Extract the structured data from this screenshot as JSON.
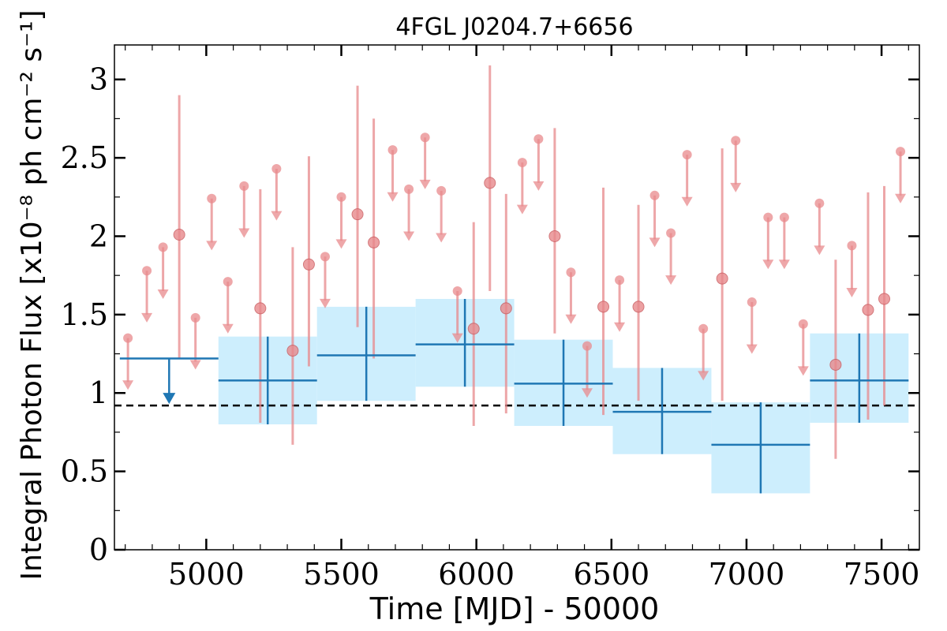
{
  "chart_data": {
    "type": "scatter",
    "title": "4FGL J0204.7+6656",
    "xlabel": "Time [MJD] - 50000",
    "ylabel": "Integral Photon Flux [x10⁻⁸ ph cm⁻² s⁻¹]",
    "xlim": [
      4660,
      7640
    ],
    "ylim": [
      0,
      3.22
    ],
    "xticks": [
      5000,
      5500,
      6000,
      6500,
      7000,
      7500
    ],
    "yticks": [
      0,
      0.5,
      1,
      1.5,
      2,
      2.5,
      3
    ],
    "ytick_labels": [
      "0",
      "0.5",
      "1",
      "1.5",
      "2",
      "2.5",
      "3"
    ],
    "mean_flux_line": 0.92,
    "colors": {
      "binned": "#1f77b4",
      "band": "#cdeefd",
      "monthly": "#e8898c",
      "mean": "#000000"
    },
    "series": [
      {
        "kind": "monthly_points",
        "points": [
          {
            "x": 4900,
            "y": 2.01,
            "lo": 1.22,
            "hi": 2.9
          },
          {
            "x": 5200,
            "y": 1.54,
            "lo": 0.81,
            "hi": 2.3
          },
          {
            "x": 5320,
            "y": 1.27,
            "lo": 0.67,
            "hi": 1.93
          },
          {
            "x": 5380,
            "y": 1.82,
            "lo": 1.17,
            "hi": 2.51
          },
          {
            "x": 5560,
            "y": 2.14,
            "lo": 1.42,
            "hi": 2.96
          },
          {
            "x": 5620,
            "y": 1.96,
            "lo": 1.22,
            "hi": 2.75
          },
          {
            "x": 5990,
            "y": 1.41,
            "lo": 0.79,
            "hi": 2.09
          },
          {
            "x": 6050,
            "y": 2.34,
            "lo": 1.65,
            "hi": 3.09
          },
          {
            "x": 6110,
            "y": 1.54,
            "lo": 0.87,
            "hi": 2.27
          },
          {
            "x": 6290,
            "y": 2.0,
            "lo": 1.38,
            "hi": 2.69
          },
          {
            "x": 6470,
            "y": 1.55,
            "lo": 0.86,
            "hi": 2.31
          },
          {
            "x": 6600,
            "y": 1.55,
            "lo": 0.95,
            "hi": 2.2
          },
          {
            "x": 6910,
            "y": 1.73,
            "lo": 0.95,
            "hi": 2.56
          },
          {
            "x": 7330,
            "y": 1.18,
            "lo": 0.58,
            "hi": 1.85
          },
          {
            "x": 7450,
            "y": 1.53,
            "lo": 0.83,
            "hi": 2.28
          },
          {
            "x": 7510,
            "y": 1.6,
            "lo": 0.92,
            "hi": 2.32
          }
        ]
      },
      {
        "kind": "monthly_upper_limits",
        "points": [
          {
            "x": 4710,
            "y": 1.35
          },
          {
            "x": 4780,
            "y": 1.78
          },
          {
            "x": 4840,
            "y": 1.93
          },
          {
            "x": 4960,
            "y": 1.48
          },
          {
            "x": 5020,
            "y": 2.24
          },
          {
            "x": 5080,
            "y": 1.71
          },
          {
            "x": 5140,
            "y": 2.32
          },
          {
            "x": 5260,
            "y": 2.43
          },
          {
            "x": 5440,
            "y": 1.87
          },
          {
            "x": 5500,
            "y": 2.25
          },
          {
            "x": 5690,
            "y": 2.55
          },
          {
            "x": 5750,
            "y": 2.3
          },
          {
            "x": 5810,
            "y": 2.63
          },
          {
            "x": 5870,
            "y": 2.29
          },
          {
            "x": 5930,
            "y": 1.65
          },
          {
            "x": 6170,
            "y": 2.47
          },
          {
            "x": 6230,
            "y": 2.62
          },
          {
            "x": 6350,
            "y": 1.77
          },
          {
            "x": 6410,
            "y": 1.3
          },
          {
            "x": 6530,
            "y": 1.72
          },
          {
            "x": 6660,
            "y": 2.26
          },
          {
            "x": 6720,
            "y": 2.02
          },
          {
            "x": 6780,
            "y": 2.52
          },
          {
            "x": 6840,
            "y": 1.41
          },
          {
            "x": 6960,
            "y": 2.61
          },
          {
            "x": 7020,
            "y": 1.58
          },
          {
            "x": 7080,
            "y": 2.12
          },
          {
            "x": 7140,
            "y": 2.12
          },
          {
            "x": 7210,
            "y": 1.44
          },
          {
            "x": 7270,
            "y": 2.21
          },
          {
            "x": 7390,
            "y": 1.94
          },
          {
            "x": 7570,
            "y": 2.54
          }
        ]
      },
      {
        "kind": "binned_upper_limits",
        "points": [
          {
            "x0": 4680,
            "x1": 5045,
            "y": 1.22
          }
        ]
      },
      {
        "kind": "binned_points",
        "points": [
          {
            "x0": 5045,
            "x1": 5410,
            "y": 1.08,
            "lo": 0.8,
            "hi": 1.36
          },
          {
            "x0": 5410,
            "x1": 5775,
            "y": 1.24,
            "lo": 0.95,
            "hi": 1.55
          },
          {
            "x0": 5775,
            "x1": 6140,
            "y": 1.31,
            "lo": 1.04,
            "hi": 1.6
          },
          {
            "x0": 6140,
            "x1": 6505,
            "y": 1.06,
            "lo": 0.79,
            "hi": 1.34
          },
          {
            "x0": 6505,
            "x1": 6870,
            "y": 0.88,
            "lo": 0.61,
            "hi": 1.16
          },
          {
            "x0": 6870,
            "x1": 7235,
            "y": 0.67,
            "lo": 0.36,
            "hi": 0.94
          },
          {
            "x0": 7235,
            "x1": 7600,
            "y": 1.08,
            "lo": 0.81,
            "hi": 1.38
          }
        ]
      }
    ]
  }
}
